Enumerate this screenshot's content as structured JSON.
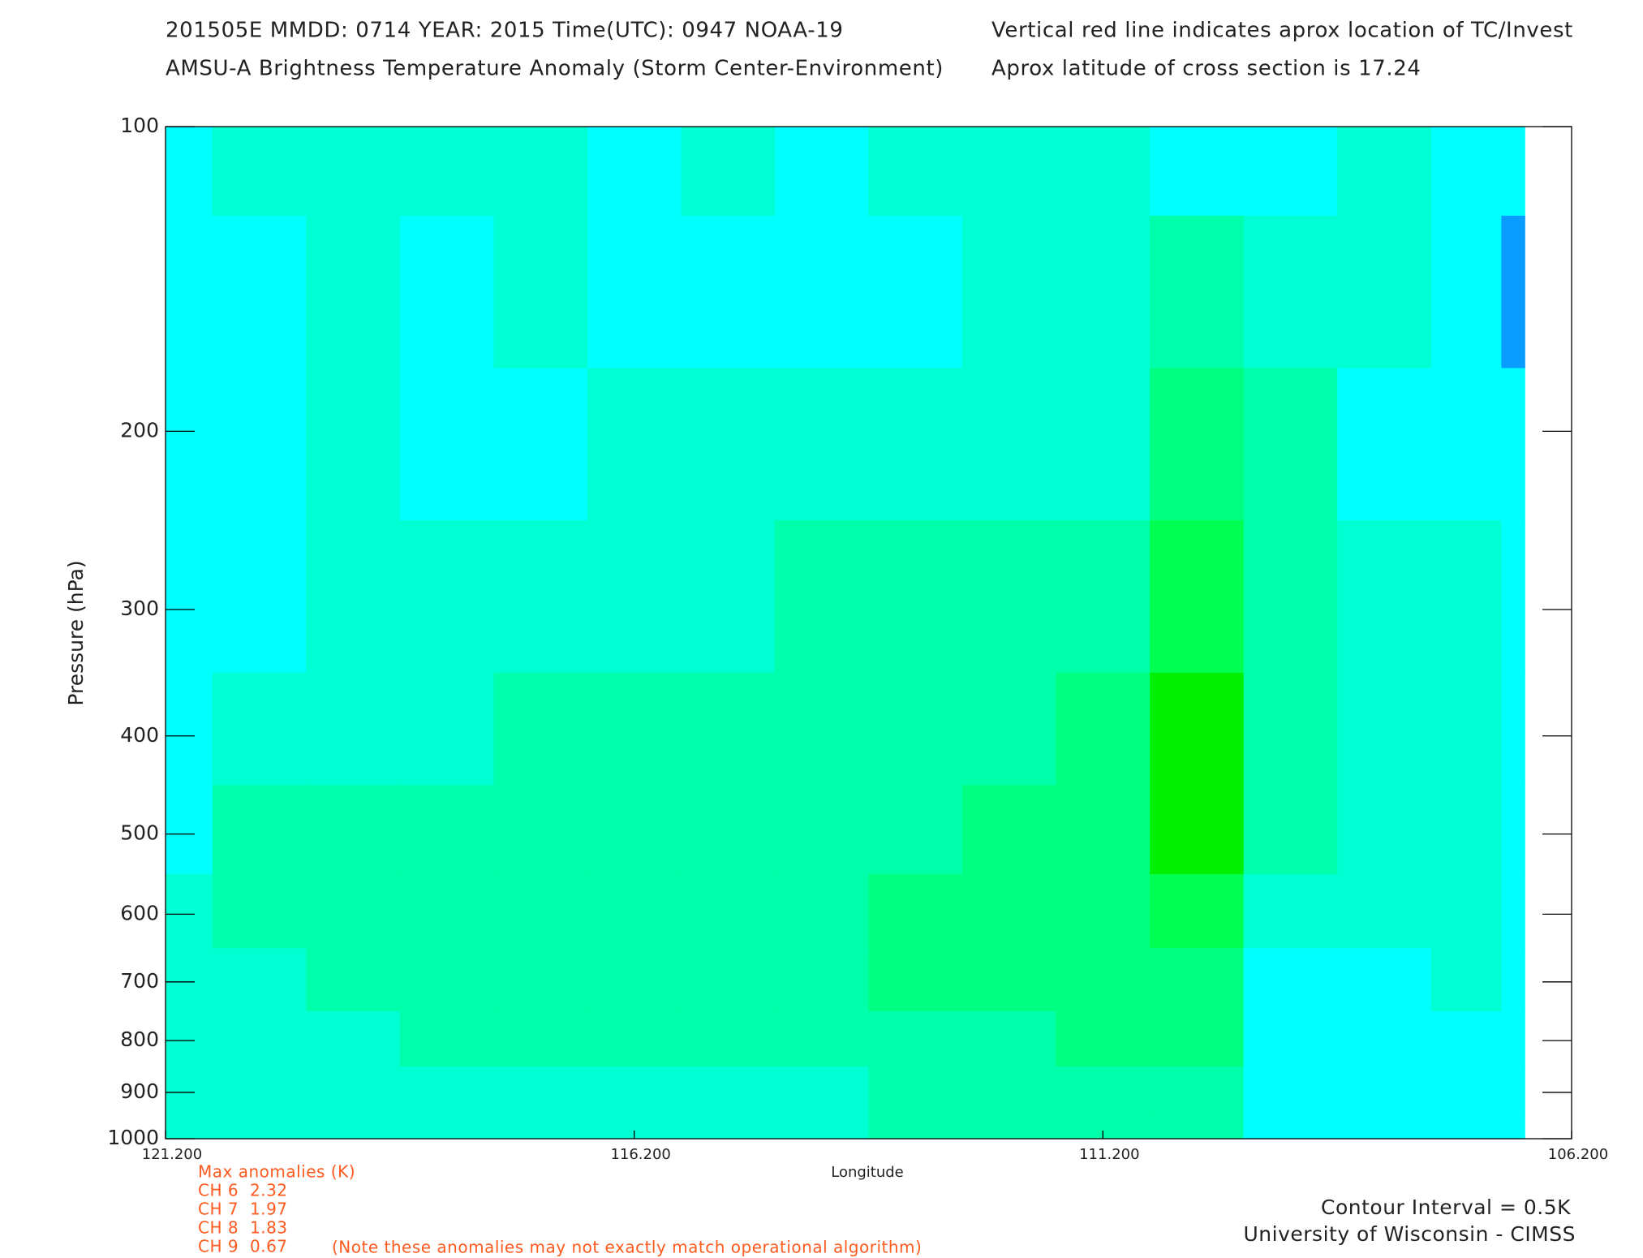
{
  "chart_data": {
    "type": "contour",
    "title": "201505E  MMDD: 0714 YEAR: 2015 Time(UTC): 0947 NOAA-19",
    "subtitle": "AMSU-A Brightness Temperature Anomaly (Storm Center-Environment)",
    "annotation_right_1": "Vertical red line indicates aprox location of TC/Invest",
    "annotation_right_2": "Aprox latitude of cross section is 17.24",
    "x_label": "Longitude",
    "y_label": "Pressure (hPa)",
    "x": [
      121.2,
      120.2,
      119.2,
      118.2,
      117.2,
      116.2,
      115.2,
      114.2,
      113.2,
      112.2,
      111.2,
      110.2,
      109.2,
      108.2,
      107.2,
      106.7
    ],
    "y": [
      100,
      150,
      200,
      300,
      400,
      500,
      600,
      700,
      800,
      900,
      1000
    ],
    "z": [
      [
        -0.3,
        0.1,
        0.2,
        0.2,
        0.1,
        -0.1,
        0.1,
        -0.1,
        0.1,
        0.2,
        0.2,
        -0.1,
        -0.1,
        0.1,
        -0.2,
        -0.2
      ],
      [
        -0.2,
        -0.1,
        0.1,
        -0.1,
        0.2,
        -0.1,
        -0.1,
        -0.2,
        -0.2,
        0.1,
        0.2,
        0.8,
        0.4,
        0.2,
        -0.1,
        -0.8
      ],
      [
        -0.2,
        -0.1,
        0.2,
        -0.1,
        -0.1,
        0.2,
        0.2,
        0.1,
        0.2,
        0.3,
        0.3,
        1.3,
        0.9,
        -0.1,
        -0.1,
        -0.3
      ],
      [
        -0.2,
        -0.1,
        0.1,
        0.2,
        0.3,
        0.4,
        0.4,
        0.5,
        0.6,
        0.6,
        0.6,
        1.8,
        0.9,
        0.0,
        0.1,
        -0.2
      ],
      [
        -0.1,
        0.1,
        0.3,
        0.3,
        0.6,
        0.7,
        0.6,
        0.6,
        0.7,
        0.8,
        1.0,
        2.2,
        0.9,
        0.3,
        0.2,
        -0.1
      ],
      [
        -0.1,
        0.6,
        0.6,
        0.7,
        0.7,
        0.7,
        0.7,
        0.7,
        0.9,
        1.1,
        1.2,
        2.3,
        0.8,
        0.4,
        0.2,
        -0.1
      ],
      [
        0.3,
        0.6,
        0.6,
        0.6,
        0.7,
        0.6,
        0.9,
        0.7,
        1.1,
        1.2,
        1.3,
        1.6,
        0.1,
        0.1,
        0.1,
        -0.1
      ],
      [
        0.3,
        0.3,
        0.6,
        0.7,
        0.7,
        0.6,
        0.8,
        0.6,
        1.1,
        1.1,
        1.3,
        1.3,
        -0.1,
        -0.1,
        0.1,
        -0.1
      ],
      [
        0.4,
        0.2,
        0.3,
        0.7,
        0.6,
        0.7,
        0.6,
        0.5,
        0.8,
        0.9,
        1.1,
        1.0,
        -0.1,
        -0.1,
        -0.1,
        -0.1
      ],
      [
        0.3,
        0.3,
        0.3,
        0.4,
        0.4,
        0.4,
        0.4,
        0.3,
        0.6,
        0.7,
        0.8,
        0.7,
        -0.1,
        -0.1,
        -0.1,
        -0.1
      ],
      [
        0.2,
        0.3,
        0.3,
        0.4,
        0.3,
        0.3,
        0.3,
        0.2,
        0.6,
        0.6,
        0.6,
        0.5,
        -0.1,
        -0.1,
        -0.1,
        -0.1
      ]
    ],
    "levels": [
      -1,
      -0.5,
      0,
      0.5,
      1,
      1.5,
      2,
      2.5
    ],
    "colors": [
      "#0a9cff",
      "#00ffff",
      "#00ffd2",
      "#00ffaa",
      "#00ff80",
      "#00ff50",
      "#00f000"
    ],
    "xlim": [
      121.2,
      106.2
    ],
    "ylim": [
      100,
      1000
    ],
    "y_log": true,
    "y_inverted": true,
    "xticks": [
      {
        "value": 121.2,
        "label": "121.200"
      },
      {
        "value": 116.2,
        "label": "116.200"
      },
      {
        "value": 111.2,
        "label": "111.200"
      },
      {
        "value": 106.2,
        "label": "106.200"
      }
    ],
    "yticks": [
      100,
      200,
      300,
      400,
      500,
      600,
      700,
      800,
      900,
      1000
    ],
    "max_anomalies_title": "Max anomalies (K)",
    "max_anomalies": [
      {
        "channel": "CH 6",
        "value": 2.32
      },
      {
        "channel": "CH 7",
        "value": 1.97
      },
      {
        "channel": "CH 8",
        "value": 1.83
      },
      {
        "channel": "CH 9",
        "value": 0.67
      }
    ],
    "anomaly_note": "(Note these anomalies may not exactly match operational algorithm)",
    "contour_interval": "Contour Interval = 0.5K",
    "credit": "University of Wisconsin - CIMSS"
  }
}
